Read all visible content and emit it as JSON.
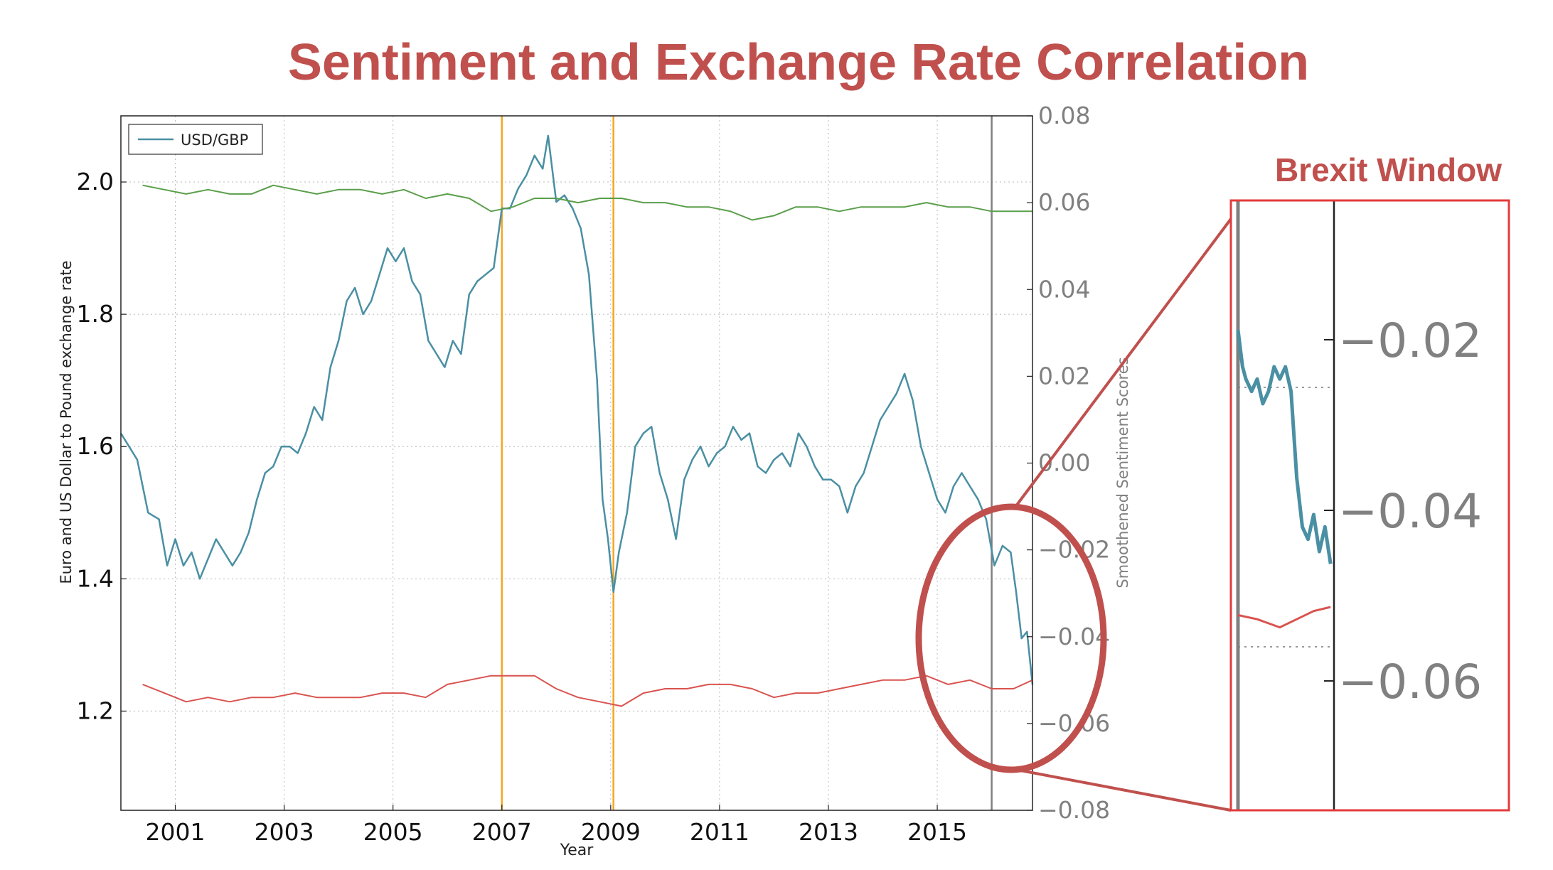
{
  "page": {
    "title": "Sentiment and Exchange Rate Correlation",
    "inset_title": "Brexit Window"
  },
  "colors": {
    "title": "#c0504d",
    "usd_gbp": "#4a8fa3",
    "green": "#5a9e4a",
    "red": "#d9534f",
    "orange": "#f5a623",
    "vline_gray": "#808080",
    "inset_border": "#e33b3b",
    "callout": "#c0504d",
    "right_axis": "#808080"
  },
  "chart_data": {
    "type": "line",
    "xlabel": "Year",
    "ylabel": "Euro and US Dollar to Pound exchange rate",
    "ylabel_right": "Smoothened Sentiment Scores",
    "xlim": [
      2000.0,
      2016.75
    ],
    "ylim": [
      1.05,
      2.1
    ],
    "ylim_right": [
      -0.08,
      0.08
    ],
    "x_ticks": [
      2001,
      2003,
      2005,
      2007,
      2009,
      2011,
      2013,
      2015
    ],
    "x_tick_labels": [
      "2001",
      "2003",
      "2005",
      "2007",
      "2009",
      "2011",
      "2013",
      "2015"
    ],
    "y_ticks": [
      1.2,
      1.4,
      1.6,
      1.8,
      2.0
    ],
    "y_tick_labels": [
      "1.2",
      "1.4",
      "1.6",
      "1.8",
      "2.0"
    ],
    "y_right_ticks": [
      -0.08,
      -0.06,
      -0.04,
      -0.02,
      0.0,
      0.02,
      0.04,
      0.06,
      0.08
    ],
    "y_right_tick_labels": [
      "−0.08",
      "−0.06",
      "−0.04",
      "−0.02",
      "0.00",
      "0.02",
      "0.04",
      "0.06",
      "0.08"
    ],
    "grid": true,
    "legend": {
      "placement": "top-left",
      "entries": [
        "USD/GBP"
      ]
    },
    "vertical_lines": [
      {
        "x": 2007.0,
        "color_key": "orange"
      },
      {
        "x": 2009.05,
        "color_key": "orange"
      },
      {
        "x": 2016.0,
        "color_key": "vline_gray"
      }
    ],
    "series": [
      {
        "name": "USD/GBP",
        "axis": "left",
        "color_key": "usd_gbp",
        "x": [
          2000.0,
          2000.15,
          2000.3,
          2000.5,
          2000.7,
          2000.85,
          2001.0,
          2001.15,
          2001.3,
          2001.45,
          2001.6,
          2001.75,
          2001.9,
          2002.05,
          2002.2,
          2002.35,
          2002.5,
          2002.65,
          2002.8,
          2002.95,
          2003.1,
          2003.25,
          2003.4,
          2003.55,
          2003.7,
          2003.85,
          2004.0,
          2004.15,
          2004.3,
          2004.45,
          2004.6,
          2004.75,
          2004.9,
          2005.05,
          2005.2,
          2005.35,
          2005.5,
          2005.65,
          2005.8,
          2005.95,
          2006.1,
          2006.25,
          2006.4,
          2006.55,
          2006.7,
          2006.85,
          2007.0,
          2007.15,
          2007.3,
          2007.45,
          2007.6,
          2007.75,
          2007.85,
          2008.0,
          2008.15,
          2008.3,
          2008.45,
          2008.6,
          2008.75,
          2008.85,
          2008.95,
          2009.05,
          2009.15,
          2009.3,
          2009.45,
          2009.6,
          2009.75,
          2009.9,
          2010.05,
          2010.2,
          2010.35,
          2010.5,
          2010.65,
          2010.8,
          2010.95,
          2011.1,
          2011.25,
          2011.4,
          2011.55,
          2011.7,
          2011.85,
          2012.0,
          2012.15,
          2012.3,
          2012.45,
          2012.6,
          2012.75,
          2012.9,
          2013.05,
          2013.2,
          2013.35,
          2013.5,
          2013.65,
          2013.8,
          2013.95,
          2014.1,
          2014.25,
          2014.4,
          2014.55,
          2014.7,
          2014.85,
          2015.0,
          2015.15,
          2015.3,
          2015.45,
          2015.6,
          2015.75,
          2015.9,
          2016.05,
          2016.2,
          2016.35,
          2016.45,
          2016.55,
          2016.65,
          2016.75
        ],
        "y": [
          1.62,
          1.6,
          1.58,
          1.5,
          1.49,
          1.42,
          1.46,
          1.42,
          1.44,
          1.4,
          1.43,
          1.46,
          1.44,
          1.42,
          1.44,
          1.47,
          1.52,
          1.56,
          1.57,
          1.6,
          1.6,
          1.59,
          1.62,
          1.66,
          1.64,
          1.72,
          1.76,
          1.82,
          1.84,
          1.8,
          1.82,
          1.86,
          1.9,
          1.88,
          1.9,
          1.85,
          1.83,
          1.76,
          1.74,
          1.72,
          1.76,
          1.74,
          1.83,
          1.85,
          1.86,
          1.87,
          1.96,
          1.96,
          1.99,
          2.01,
          2.04,
          2.02,
          2.07,
          1.97,
          1.98,
          1.96,
          1.93,
          1.86,
          1.7,
          1.52,
          1.46,
          1.38,
          1.44,
          1.5,
          1.6,
          1.62,
          1.63,
          1.56,
          1.52,
          1.46,
          1.55,
          1.58,
          1.6,
          1.57,
          1.59,
          1.6,
          1.63,
          1.61,
          1.62,
          1.57,
          1.56,
          1.58,
          1.59,
          1.57,
          1.62,
          1.6,
          1.57,
          1.55,
          1.55,
          1.54,
          1.5,
          1.54,
          1.56,
          1.6,
          1.64,
          1.66,
          1.68,
          1.71,
          1.67,
          1.6,
          1.56,
          1.52,
          1.5,
          1.54,
          1.56,
          1.54,
          1.52,
          1.49,
          1.42,
          1.45,
          1.44,
          1.38,
          1.31,
          1.32,
          1.24
        ]
      },
      {
        "name": "",
        "axis": "right",
        "color_key": "green",
        "x": [
          2000.4,
          2000.8,
          2001.2,
          2001.6,
          2002.0,
          2002.4,
          2002.8,
          2003.2,
          2003.6,
          2004.0,
          2004.4,
          2004.8,
          2005.2,
          2005.6,
          2006.0,
          2006.4,
          2006.8,
          2007.2,
          2007.6,
          2008.0,
          2008.4,
          2008.8,
          2009.2,
          2009.6,
          2010.0,
          2010.4,
          2010.8,
          2011.2,
          2011.6,
          2012.0,
          2012.4,
          2012.8,
          2013.2,
          2013.6,
          2014.0,
          2014.4,
          2014.8,
          2015.2,
          2015.6,
          2016.0,
          2016.4,
          2016.75
        ],
        "y": [
          0.064,
          0.063,
          0.062,
          0.063,
          0.062,
          0.062,
          0.064,
          0.063,
          0.062,
          0.063,
          0.063,
          0.062,
          0.063,
          0.061,
          0.062,
          0.061,
          0.058,
          0.059,
          0.061,
          0.061,
          0.06,
          0.061,
          0.061,
          0.06,
          0.06,
          0.059,
          0.059,
          0.058,
          0.056,
          0.057,
          0.059,
          0.059,
          0.058,
          0.059,
          0.059,
          0.059,
          0.06,
          0.059,
          0.059,
          0.058,
          0.058,
          0.058
        ]
      },
      {
        "name": "",
        "axis": "right",
        "color_key": "red",
        "x": [
          2000.4,
          2000.8,
          2001.2,
          2001.6,
          2002.0,
          2002.4,
          2002.8,
          2003.2,
          2003.6,
          2004.0,
          2004.4,
          2004.8,
          2005.2,
          2005.6,
          2006.0,
          2006.4,
          2006.8,
          2007.2,
          2007.6,
          2008.0,
          2008.4,
          2008.8,
          2009.2,
          2009.6,
          2010.0,
          2010.4,
          2010.8,
          2011.2,
          2011.6,
          2012.0,
          2012.4,
          2012.8,
          2013.2,
          2013.6,
          2014.0,
          2014.4,
          2014.8,
          2015.2,
          2015.6,
          2016.0,
          2016.4,
          2016.75
        ],
        "y": [
          -0.051,
          -0.053,
          -0.055,
          -0.054,
          -0.055,
          -0.054,
          -0.054,
          -0.053,
          -0.054,
          -0.054,
          -0.054,
          -0.053,
          -0.053,
          -0.054,
          -0.051,
          -0.05,
          -0.049,
          -0.049,
          -0.049,
          -0.052,
          -0.054,
          -0.055,
          -0.056,
          -0.053,
          -0.052,
          -0.052,
          -0.051,
          -0.051,
          -0.052,
          -0.054,
          -0.053,
          -0.053,
          -0.052,
          -0.051,
          -0.05,
          -0.05,
          -0.049,
          -0.051,
          -0.05,
          -0.052,
          -0.052,
          -0.05
        ]
      }
    ]
  },
  "inset": {
    "y_tick_labels": [
      "−0.02",
      "−0.04",
      "−0.06"
    ],
    "y_ticks": [
      -0.02,
      -0.04,
      -0.06
    ],
    "ylim_right": [
      -0.075,
      -0.0
    ],
    "xlim": [
      2015.93,
      2016.78
    ],
    "usd_x": [
      2015.93,
      2015.97,
      2016.0,
      2016.05,
      2016.1,
      2016.15,
      2016.2,
      2016.25,
      2016.3,
      2016.35,
      2016.4,
      2016.45,
      2016.5,
      2016.55,
      2016.6,
      2016.65,
      2016.7,
      2016.75
    ],
    "usd_y": [
      1.49,
      1.46,
      1.45,
      1.44,
      1.45,
      1.43,
      1.44,
      1.46,
      1.45,
      1.46,
      1.44,
      1.37,
      1.33,
      1.32,
      1.34,
      1.31,
      1.33,
      1.3
    ],
    "red_x": [
      2015.93,
      2016.1,
      2016.3,
      2016.45,
      2016.6,
      2016.75
    ],
    "red_y": [
      -0.051,
      -0.0515,
      -0.0525,
      -0.0515,
      -0.0505,
      -0.05
    ]
  }
}
